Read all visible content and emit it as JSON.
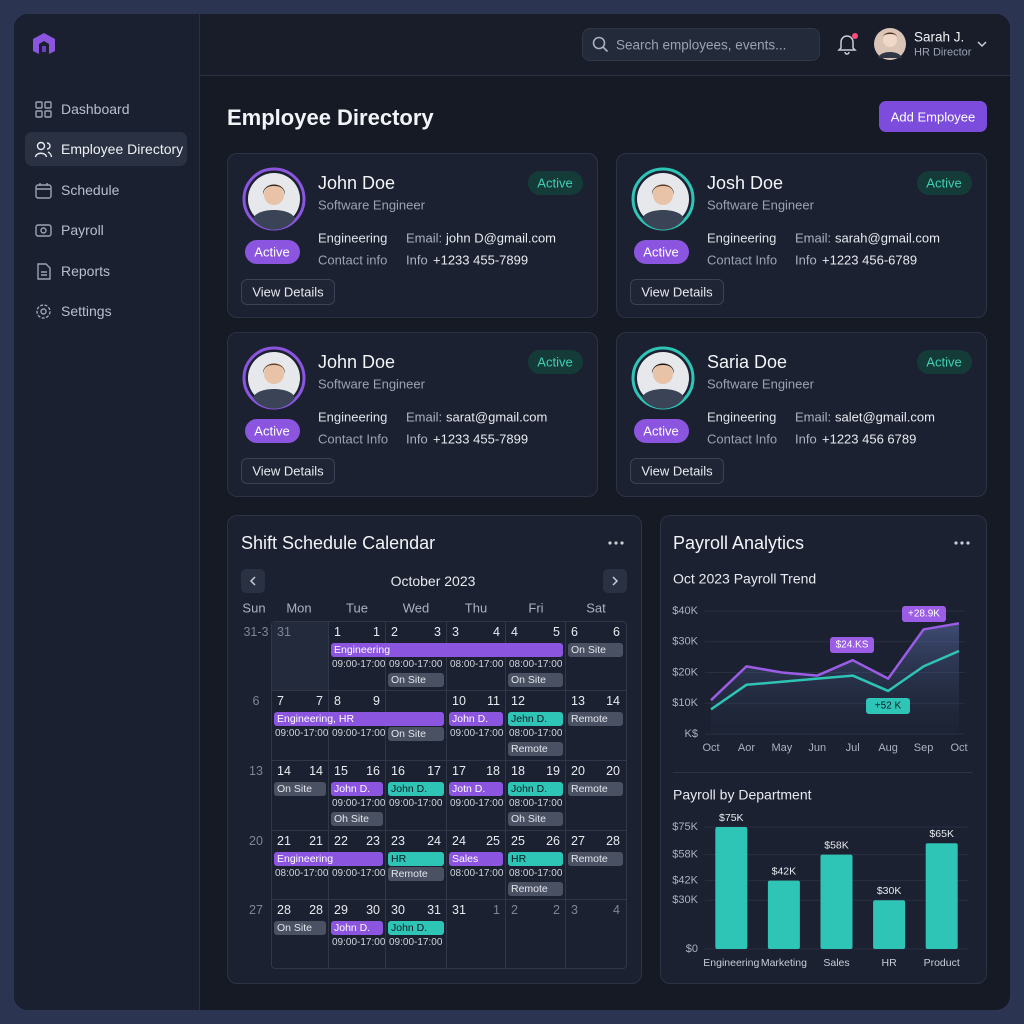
{
  "header": {
    "search_placeholder": "Search employees, events...",
    "user_name": "Sarah J.",
    "user_role": "HR Director"
  },
  "sidebar": {
    "nav": [
      "Dashboard",
      "Employee Directory",
      "Schedule",
      "Payroll",
      "Reports",
      "Settings"
    ]
  },
  "page": {
    "title": "Employee Directory",
    "add_button": "Add Employee"
  },
  "employees": [
    {
      "name": "John Doe",
      "role": "Software Engineer",
      "status": "Active",
      "badge": "Active",
      "department": "Engineering",
      "contact_label": "Contact info",
      "email_label": "Email:",
      "email": "john D@gmail.com",
      "info_label": "Info",
      "phone": "+1233 455-7899",
      "button": "View Details"
    },
    {
      "name": "Josh Doe",
      "role": "Software Engineer",
      "status": "Active",
      "badge": "Active",
      "department": "Engineering",
      "contact_label": "Contact Info",
      "email_label": "Email:",
      "email": "sarah@gmail.com",
      "info_label": "Info",
      "phone": "+1223 456-6789",
      "button": "View Details"
    },
    {
      "name": "John Doe",
      "role": "Software Engineer",
      "status": "Active",
      "badge": "Active",
      "department": "Engineering",
      "contact_label": "Contact Info",
      "email_label": "Email:",
      "email": "sarat@gmail.com",
      "info_label": "Info",
      "phone": "+1233 455-7899",
      "button": "View Details"
    },
    {
      "name": "Saria Doe",
      "role": "Software Engineer",
      "status": "Active",
      "badge": "Active",
      "department": "Engineering",
      "contact_label": "Contact Info",
      "email_label": "Email:",
      "email": "salet@gmail.com",
      "info_label": "Info",
      "phone": "+1223 456 6789",
      "button": "View Details"
    }
  ],
  "calendar": {
    "title": "Shift Schedule Calendar",
    "month": "October 2023",
    "weekdays": [
      "Sun",
      "Mon",
      "Tue",
      "Wed",
      "Thu",
      "Fri",
      "Sat"
    ],
    "weeks": [
      {
        "label": "31-3",
        "cells": [
          {
            "nums": [
              "31"
            ],
            "items": []
          },
          {
            "nums": [
              "1",
              "1"
            ],
            "items": [
              {
                "text": "Engineering",
                "style": "purple"
              },
              {
                "text": "09:00-17:00",
                "style": "time"
              }
            ]
          },
          {
            "nums": [
              "2",
              "3"
            ],
            "items": [
              {
                "text": "09:00-17:00",
                "style": "time"
              },
              {
                "text": "On Site",
                "style": "gray"
              }
            ]
          },
          {
            "nums": [
              "3",
              "4"
            ],
            "items": [
              {
                "text": "08:00-17:00",
                "style": "time"
              }
            ]
          },
          {
            "nums": [
              "4",
              "5"
            ],
            "items": [
              {
                "text": "08:00-17:00",
                "style": "time"
              },
              {
                "text": "On Site",
                "style": "gray"
              }
            ]
          },
          {
            "nums": [
              "6",
              "6"
            ],
            "items": [
              {
                "text": "On Site",
                "style": "gray"
              }
            ]
          }
        ]
      },
      {
        "label": "6",
        "cells": [
          {
            "nums": [
              "7",
              "7"
            ],
            "items": [
              {
                "text": "Engineering, HR",
                "style": "purple"
              },
              {
                "text": "09:00-17:00",
                "style": "time"
              }
            ]
          },
          {
            "nums": [
              "8",
              "9"
            ],
            "items": [
              {
                "text": "09:00-17:00",
                "style": "time"
              }
            ]
          },
          {
            "nums": [],
            "items": [
              {
                "text": "On Site",
                "style": "gray"
              }
            ]
          },
          {
            "nums": [
              "10",
              "11"
            ],
            "items": [
              {
                "text": "John D.",
                "style": "purple"
              },
              {
                "text": "09:00-17:00",
                "style": "time"
              }
            ]
          },
          {
            "nums": [
              "12"
            ],
            "items": [
              {
                "text": "Jehn D.",
                "style": "teal"
              },
              {
                "text": "08:00-17:00",
                "style": "time"
              },
              {
                "text": "Remote",
                "style": "gray"
              }
            ]
          },
          {
            "nums": [
              "13",
              "14"
            ],
            "items": [
              {
                "text": "Remote",
                "style": "gray"
              }
            ]
          }
        ]
      },
      {
        "label": "13",
        "cells": [
          {
            "nums": [
              "14",
              "14"
            ],
            "items": [
              {
                "text": "On Site",
                "style": "gray"
              }
            ]
          },
          {
            "nums": [
              "15",
              "16"
            ],
            "items": [
              {
                "text": "John D.",
                "style": "purple"
              },
              {
                "text": "09:00-17:00",
                "style": "time"
              },
              {
                "text": "Oh Site",
                "style": "gray"
              }
            ]
          },
          {
            "nums": [
              "16",
              "17"
            ],
            "items": [
              {
                "text": "John D.",
                "style": "teal"
              },
              {
                "text": "09:00-17:00",
                "style": "time"
              }
            ]
          },
          {
            "nums": [
              "17",
              "18"
            ],
            "items": [
              {
                "text": "Jotn D.",
                "style": "purple"
              },
              {
                "text": "09:00-17:00",
                "style": "time"
              }
            ]
          },
          {
            "nums": [
              "18",
              "19"
            ],
            "items": [
              {
                "text": "John D.",
                "style": "teal"
              },
              {
                "text": "08:00-17:00",
                "style": "time"
              },
              {
                "text": "Oh Site",
                "style": "gray"
              }
            ]
          },
          {
            "nums": [
              "20",
              "20"
            ],
            "items": [
              {
                "text": "Remote",
                "style": "gray"
              }
            ]
          }
        ]
      },
      {
        "label": "20",
        "cells": [
          {
            "nums": [
              "21",
              "21"
            ],
            "items": [
              {
                "text": "Engineering",
                "style": "purple"
              },
              {
                "text": "08:00-17:00",
                "style": "time"
              }
            ]
          },
          {
            "nums": [
              "22",
              "23"
            ],
            "items": [
              {
                "text": "09:00-17:00",
                "style": "time"
              }
            ]
          },
          {
            "nums": [
              "23",
              "24"
            ],
            "items": [
              {
                "text": "HR",
                "style": "teal"
              },
              {
                "text": "Remote",
                "style": "gray"
              }
            ]
          },
          {
            "nums": [
              "24",
              "25"
            ],
            "items": [
              {
                "text": "Sales",
                "style": "purple"
              },
              {
                "text": "08:00-17:00",
                "style": "time"
              }
            ]
          },
          {
            "nums": [
              "25",
              "26"
            ],
            "items": [
              {
                "text": "HR",
                "style": "teal"
              },
              {
                "text": "08:00-17:00",
                "style": "time"
              },
              {
                "text": "Remote",
                "style": "gray"
              }
            ]
          },
          {
            "nums": [
              "27",
              "28"
            ],
            "items": [
              {
                "text": "Remote",
                "style": "gray"
              }
            ]
          }
        ]
      },
      {
        "label": "27",
        "cells": [
          {
            "nums": [
              "28",
              "28"
            ],
            "items": [
              {
                "text": "On Site",
                "style": "gray"
              }
            ]
          },
          {
            "nums": [
              "29",
              "30"
            ],
            "items": [
              {
                "text": "John D.",
                "style": "purple"
              },
              {
                "text": "09:00-17:00",
                "style": "time"
              }
            ]
          },
          {
            "nums": [
              "30",
              "31"
            ],
            "items": [
              {
                "text": "John D.",
                "style": "teal"
              },
              {
                "text": "09:00-17:00",
                "style": "time"
              }
            ]
          },
          {
            "nums": [
              "31",
              "1"
            ],
            "items": []
          },
          {
            "nums": [
              "2",
              "2"
            ],
            "items": []
          },
          {
            "nums": [
              "3",
              "4"
            ],
            "items": []
          }
        ]
      }
    ]
  },
  "payroll": {
    "title": "Payroll Analytics"
  },
  "chart_data": [
    {
      "type": "line",
      "title": "Oct 2023 Payroll Trend",
      "categories": [
        "Oct",
        "Aor",
        "May",
        "Jun",
        "Jul",
        "Aug",
        "Sep",
        "Oct"
      ],
      "series": [
        {
          "color": "#9b5de5",
          "values": [
            11000,
            22000,
            20000,
            19000,
            24000,
            18000,
            34000,
            36000
          ]
        },
        {
          "color": "#2ec4b6",
          "values": [
            8000,
            16000,
            17000,
            18000,
            19000,
            14000,
            22000,
            27000
          ]
        }
      ],
      "ylim": [
        0,
        40000
      ],
      "yticks": [
        {
          "value": 40000,
          "label": "$40K"
        },
        {
          "value": 30000,
          "label": "$30K"
        },
        {
          "value": 20000,
          "label": "$20K"
        },
        {
          "value": 10000,
          "label": "$10K"
        },
        {
          "value": 0,
          "label": "K$"
        }
      ],
      "annotations": [
        "$24.KS",
        "+28.9K",
        "+52 K"
      ],
      "grid": true
    },
    {
      "type": "bar",
      "title": "Payroll by Department",
      "categories": [
        "Engineering",
        "Marketing",
        "Sales",
        "HR",
        "Product"
      ],
      "values": [
        75000,
        42000,
        58000,
        30000,
        65000
      ],
      "value_labels": [
        "$75K",
        "$42K",
        "$58K",
        "$30K",
        "$65K"
      ],
      "color": "#2ec4b6",
      "ylim": [
        0,
        75000
      ],
      "yticks": [
        {
          "value": 75000,
          "label": "$75K"
        },
        {
          "value": 58000,
          "label": "$58K"
        },
        {
          "value": 42000,
          "label": "$42K"
        },
        {
          "value": 30000,
          "label": "$30K"
        },
        {
          "value": 0,
          "label": "$0"
        }
      ],
      "grid": true
    }
  ]
}
